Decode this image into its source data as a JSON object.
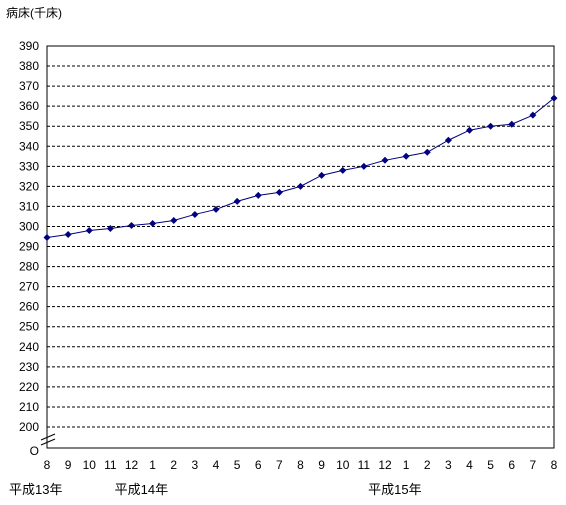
{
  "chart_data": {
    "type": "line",
    "ylabel": "病床(千床)",
    "yticks": [
      "390",
      "380",
      "370",
      "360",
      "350",
      "340",
      "330",
      "320",
      "310",
      "300",
      "290",
      "280",
      "270",
      "260",
      "250",
      "240",
      "230",
      "220",
      "210",
      "200"
    ],
    "yzero_label": "O",
    "ylim": [
      200,
      390
    ],
    "categories": [
      "8",
      "9",
      "10",
      "11",
      "12",
      "1",
      "2",
      "3",
      "4",
      "5",
      "6",
      "7",
      "8",
      "9",
      "10",
      "11",
      "12",
      "1",
      "2",
      "3",
      "4",
      "5",
      "6",
      "7",
      "8"
    ],
    "year_labels": [
      {
        "label": "平成13年",
        "at": 0
      },
      {
        "label": "平成14年",
        "at": 5
      },
      {
        "label": "平成15年",
        "at": 17
      }
    ],
    "series": [
      {
        "values": [
          294.5,
          296,
          298,
          299,
          300.5,
          301.5,
          303,
          306,
          308.5,
          312.5,
          315.5,
          317,
          320,
          325.5,
          328,
          330,
          333,
          335,
          337,
          343,
          348,
          350,
          351,
          355.5,
          364
        ]
      }
    ],
    "grid": true,
    "axis_break": true,
    "line_color": "#000080"
  }
}
